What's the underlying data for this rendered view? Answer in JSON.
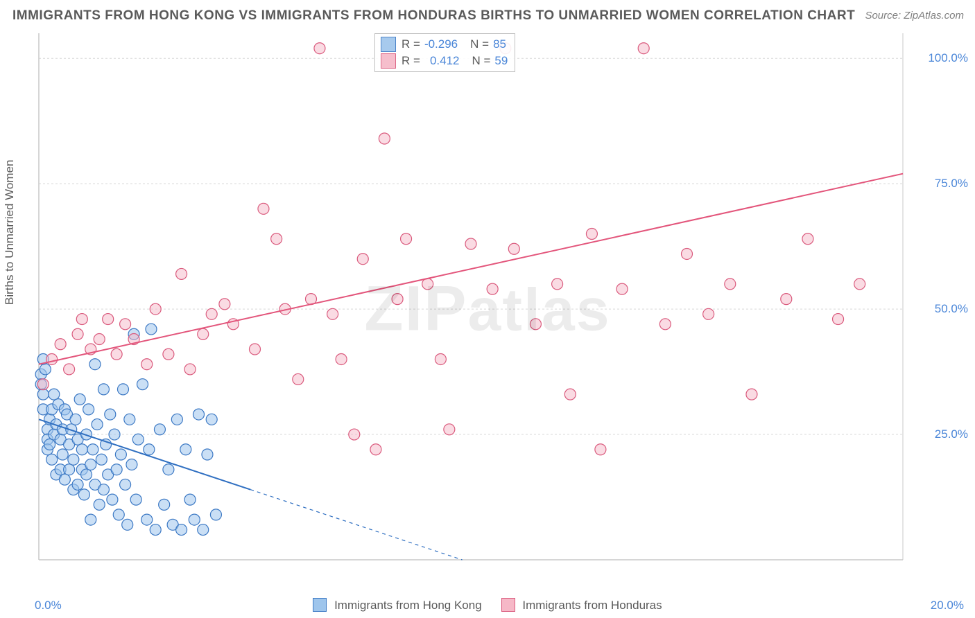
{
  "title": "IMMIGRANTS FROM HONG KONG VS IMMIGRANTS FROM HONDURAS BIRTHS TO UNMARRIED WOMEN CORRELATION CHART",
  "source": "Source: ZipAtlas.com",
  "ylabel": "Births to Unmarried Women",
  "watermark": {
    "pre": "ZIP",
    "post": "atlas"
  },
  "chart": {
    "type": "scatter",
    "xlim": [
      0,
      20
    ],
    "ylim": [
      0,
      105
    ],
    "xticks": [
      {
        "v": 0.0,
        "label": "0.0%"
      },
      {
        "v": 20.0,
        "label": "20.0%"
      }
    ],
    "yticks": [
      {
        "v": 25,
        "label": "25.0%"
      },
      {
        "v": 50,
        "label": "50.0%"
      },
      {
        "v": 75,
        "label": "75.0%"
      },
      {
        "v": 100,
        "label": "100.0%"
      }
    ],
    "background_color": "#ffffff",
    "grid_color": "#d8d8d8",
    "axis_color": "#c8c8c8",
    "marker_radius": 8,
    "marker_stroke_width": 1.2,
    "trend_line_width": 2,
    "series": [
      {
        "key": "hongkong",
        "label": "Immigrants from Hong Kong",
        "fill": "#9ec5ec",
        "fill_opacity": 0.55,
        "stroke": "#3b78c4",
        "trend_color": "#2f6fc1",
        "trend": {
          "x1": 0,
          "y1": 28,
          "x2": 4.9,
          "y2": 14
        },
        "trend_dash": {
          "x1": 4.9,
          "y1": 14,
          "x2": 9.8,
          "y2": 0
        },
        "R": "-0.296",
        "N": "85",
        "points": [
          [
            0.05,
            37
          ],
          [
            0.05,
            35
          ],
          [
            0.1,
            33
          ],
          [
            0.1,
            40
          ],
          [
            0.1,
            30
          ],
          [
            0.15,
            38
          ],
          [
            0.2,
            26
          ],
          [
            0.2,
            24
          ],
          [
            0.2,
            22
          ],
          [
            0.25,
            28
          ],
          [
            0.25,
            23
          ],
          [
            0.3,
            30
          ],
          [
            0.3,
            20
          ],
          [
            0.35,
            25
          ],
          [
            0.35,
            33
          ],
          [
            0.4,
            27
          ],
          [
            0.4,
            17
          ],
          [
            0.45,
            31
          ],
          [
            0.5,
            24
          ],
          [
            0.5,
            18
          ],
          [
            0.55,
            26
          ],
          [
            0.55,
            21
          ],
          [
            0.6,
            30
          ],
          [
            0.6,
            16
          ],
          [
            0.65,
            29
          ],
          [
            0.7,
            23
          ],
          [
            0.7,
            18
          ],
          [
            0.75,
            26
          ],
          [
            0.8,
            20
          ],
          [
            0.8,
            14
          ],
          [
            0.85,
            28
          ],
          [
            0.9,
            24
          ],
          [
            0.9,
            15
          ],
          [
            0.95,
            32
          ],
          [
            1.0,
            22
          ],
          [
            1.0,
            18
          ],
          [
            1.05,
            13
          ],
          [
            1.1,
            25
          ],
          [
            1.1,
            17
          ],
          [
            1.15,
            30
          ],
          [
            1.2,
            19
          ],
          [
            1.2,
            8
          ],
          [
            1.25,
            22
          ],
          [
            1.3,
            39
          ],
          [
            1.3,
            15
          ],
          [
            1.35,
            27
          ],
          [
            1.4,
            11
          ],
          [
            1.45,
            20
          ],
          [
            1.5,
            34
          ],
          [
            1.5,
            14
          ],
          [
            1.55,
            23
          ],
          [
            1.6,
            17
          ],
          [
            1.65,
            29
          ],
          [
            1.7,
            12
          ],
          [
            1.75,
            25
          ],
          [
            1.8,
            18
          ],
          [
            1.85,
            9
          ],
          [
            1.9,
            21
          ],
          [
            1.95,
            34
          ],
          [
            2.0,
            15
          ],
          [
            2.05,
            7
          ],
          [
            2.1,
            28
          ],
          [
            2.15,
            19
          ],
          [
            2.2,
            45
          ],
          [
            2.25,
            12
          ],
          [
            2.3,
            24
          ],
          [
            2.4,
            35
          ],
          [
            2.5,
            8
          ],
          [
            2.55,
            22
          ],
          [
            2.6,
            46
          ],
          [
            2.7,
            6
          ],
          [
            2.8,
            26
          ],
          [
            2.9,
            11
          ],
          [
            3.0,
            18
          ],
          [
            3.1,
            7
          ],
          [
            3.2,
            28
          ],
          [
            3.3,
            6
          ],
          [
            3.4,
            22
          ],
          [
            3.5,
            12
          ],
          [
            3.6,
            8
          ],
          [
            3.7,
            29
          ],
          [
            3.8,
            6
          ],
          [
            3.9,
            21
          ],
          [
            4.0,
            28
          ],
          [
            4.1,
            9
          ]
        ]
      },
      {
        "key": "honduras",
        "label": "Immigrants from Honduras",
        "fill": "#f6b8c7",
        "fill_opacity": 0.5,
        "stroke": "#da5a7d",
        "trend_color": "#e3557b",
        "trend": {
          "x1": 0,
          "y1": 39,
          "x2": 20,
          "y2": 77
        },
        "R": "0.412",
        "N": "59",
        "points": [
          [
            0.1,
            35
          ],
          [
            0.3,
            40
          ],
          [
            0.5,
            43
          ],
          [
            0.7,
            38
          ],
          [
            0.9,
            45
          ],
          [
            1.0,
            48
          ],
          [
            1.2,
            42
          ],
          [
            1.4,
            44
          ],
          [
            1.6,
            48
          ],
          [
            1.8,
            41
          ],
          [
            2.0,
            47
          ],
          [
            2.2,
            44
          ],
          [
            2.5,
            39
          ],
          [
            2.7,
            50
          ],
          [
            3.0,
            41
          ],
          [
            3.3,
            57
          ],
          [
            3.5,
            38
          ],
          [
            3.8,
            45
          ],
          [
            4.0,
            49
          ],
          [
            4.3,
            51
          ],
          [
            4.5,
            47
          ],
          [
            5.0,
            42
          ],
          [
            5.2,
            70
          ],
          [
            5.5,
            64
          ],
          [
            5.7,
            50
          ],
          [
            6.0,
            36
          ],
          [
            6.3,
            52
          ],
          [
            6.5,
            102
          ],
          [
            6.8,
            49
          ],
          [
            7.0,
            40
          ],
          [
            7.3,
            25
          ],
          [
            7.5,
            60
          ],
          [
            7.8,
            22
          ],
          [
            8.0,
            84
          ],
          [
            8.3,
            52
          ],
          [
            8.5,
            64
          ],
          [
            9.0,
            55
          ],
          [
            9.3,
            40
          ],
          [
            9.5,
            26
          ],
          [
            10.0,
            63
          ],
          [
            10.5,
            54
          ],
          [
            10.8,
            102
          ],
          [
            11.0,
            62
          ],
          [
            11.5,
            47
          ],
          [
            12.0,
            55
          ],
          [
            12.3,
            33
          ],
          [
            12.8,
            65
          ],
          [
            13.0,
            22
          ],
          [
            13.5,
            54
          ],
          [
            14.0,
            102
          ],
          [
            14.5,
            47
          ],
          [
            15.0,
            61
          ],
          [
            15.5,
            49
          ],
          [
            16.0,
            55
          ],
          [
            16.5,
            33
          ],
          [
            17.3,
            52
          ],
          [
            17.8,
            64
          ],
          [
            18.5,
            48
          ],
          [
            19.0,
            55
          ]
        ]
      }
    ]
  },
  "bottom_legend": [
    {
      "label": "Immigrants from Hong Kong",
      "fill": "#9ec5ec",
      "stroke": "#3b78c4"
    },
    {
      "label": "Immigrants from Honduras",
      "fill": "#f6b8c7",
      "stroke": "#da5a7d"
    }
  ]
}
